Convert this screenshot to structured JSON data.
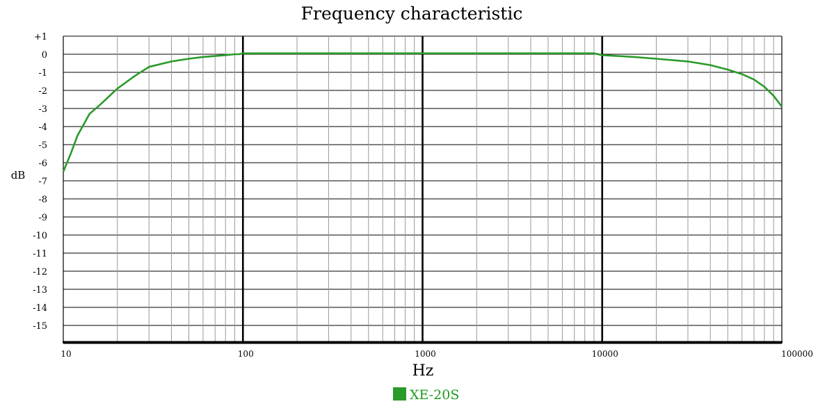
{
  "chart_data": {
    "type": "line",
    "title": "Frequency characteristic",
    "xlabel": "Hz",
    "ylabel": "dB",
    "x_scale": "log",
    "xlim": [
      10,
      100000
    ],
    "ylim": [
      -16,
      1
    ],
    "x_ticks": [
      "10",
      "100",
      "1000",
      "10000",
      "100000"
    ],
    "y_ticks": [
      "+1",
      "0",
      "-1",
      "-2",
      "-3",
      "-4",
      "-5",
      "-6",
      "-7",
      "-8",
      "-9",
      "-10",
      "-11",
      "-12",
      "-13",
      "-14",
      "-15"
    ],
    "grid": true,
    "legend_position": "bottom-center",
    "series": [
      {
        "name": "XE-20S",
        "color": "#2a9a2a",
        "x": [
          10,
          11,
          12,
          14,
          16,
          20,
          25,
          30,
          40,
          50,
          60,
          70,
          80,
          90,
          95,
          100,
          200,
          500,
          1000,
          2000,
          5000,
          8000,
          9000,
          10000,
          15000,
          20000,
          30000,
          40000,
          50000,
          60000,
          70000,
          80000,
          90000,
          100000
        ],
        "y": [
          -6.5,
          -5.5,
          -4.5,
          -3.3,
          -2.8,
          -1.9,
          -1.2,
          -0.7,
          -0.4,
          -0.25,
          -0.15,
          -0.1,
          -0.05,
          0,
          0,
          0.05,
          0.05,
          0.05,
          0.05,
          0.05,
          0.05,
          0.05,
          0.05,
          -0.05,
          -0.15,
          -0.25,
          -0.4,
          -0.6,
          -0.85,
          -1.1,
          -1.4,
          -1.8,
          -2.3,
          -2.9
        ]
      }
    ]
  }
}
